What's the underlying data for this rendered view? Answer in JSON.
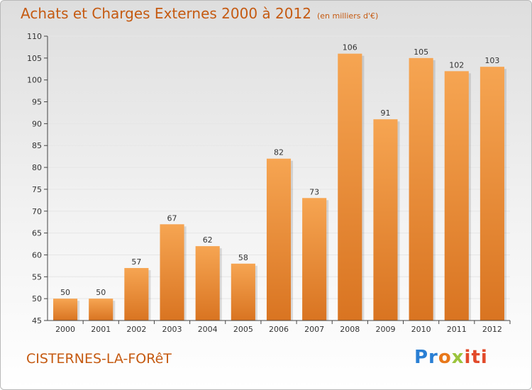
{
  "title": "Achats et Charges Externes 2000 à 2012",
  "title_unit": "(en milliers d'€)",
  "place": "CISTERNES-LA-FORêT",
  "logo": {
    "parts": [
      "Pr",
      "o",
      "x",
      "iti"
    ],
    "colors": [
      "#2a7fd4",
      "#e8781a",
      "#9bc43c",
      "#e24a2a"
    ]
  },
  "chart_data": {
    "type": "bar",
    "categories": [
      "2000",
      "2001",
      "2002",
      "2003",
      "2004",
      "2005",
      "2006",
      "2007",
      "2008",
      "2009",
      "2010",
      "2011",
      "2012"
    ],
    "values": [
      50,
      50,
      57,
      67,
      62,
      58,
      82,
      73,
      106,
      91,
      105,
      102,
      103
    ],
    "data_labels": [
      "50",
      "50",
      "57",
      "67",
      "62",
      "58",
      "82",
      "73",
      "106",
      "91",
      "105",
      "102",
      "103"
    ],
    "ylim": [
      45,
      110
    ],
    "yticks": [
      45,
      50,
      55,
      60,
      65,
      70,
      75,
      80,
      85,
      90,
      95,
      100,
      105,
      110
    ],
    "grid": true,
    "colors": {
      "bar_top": "#f6a552",
      "bar_bottom": "#d97421",
      "axis": "#444444",
      "grid": "#e6e6e6"
    }
  }
}
